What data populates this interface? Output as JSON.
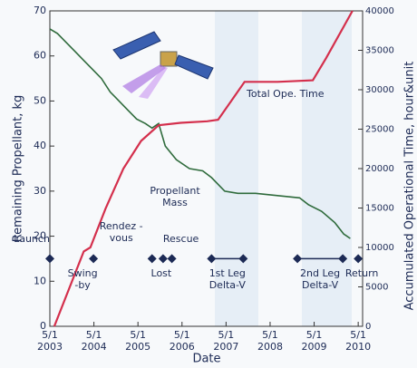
{
  "chart_data": {
    "type": "line",
    "x_label": "Date",
    "y_label": "Remaining Propellant, kg",
    "y2_label": "Accumulated Operational Time, hour&unit",
    "xlim": [
      2003.33,
      2010.43
    ],
    "xticks": [
      {
        "value": 2003.33,
        "label": "5/1 2003"
      },
      {
        "value": 2004.33,
        "label": "5/1 2004"
      },
      {
        "value": 2005.33,
        "label": "5/1 2005"
      },
      {
        "value": 2006.33,
        "label": "5/1 2006"
      },
      {
        "value": 2007.33,
        "label": "5/1 2007"
      },
      {
        "value": 2008.33,
        "label": "5/1 2008"
      },
      {
        "value": 2009.33,
        "label": "5/1 2009"
      },
      {
        "value": 2010.33,
        "label": "5/1 2010"
      }
    ],
    "ylim": [
      0,
      70
    ],
    "yticks": [
      0,
      10,
      20,
      30,
      40,
      50,
      60,
      70
    ],
    "y2lim": [
      0,
      40000
    ],
    "y2ticks": [
      0,
      5000,
      10000,
      15000,
      20000,
      25000,
      30000,
      35000,
      40000
    ],
    "series": [
      {
        "name": "Propellant Mass",
        "color": "#2f6b3c",
        "axis": "y",
        "x": [
          2003.33,
          2003.5,
          2003.7,
          2003.9,
          2004.1,
          2004.3,
          2004.5,
          2004.7,
          2004.9,
          2005.1,
          2005.3,
          2005.5,
          2005.65,
          2005.8,
          2005.95,
          2006.2,
          2006.5,
          2006.8,
          2007.0,
          2007.3,
          2007.6,
          2008.0,
          2008.5,
          2009.0,
          2009.2,
          2009.5,
          2009.8,
          2010.0,
          2010.15
        ],
        "values": [
          66,
          65,
          63,
          61,
          59,
          57,
          55,
          52,
          50,
          48,
          46,
          45,
          44,
          45,
          40,
          37,
          35,
          34.5,
          33,
          30,
          29.5,
          29.5,
          29,
          28.5,
          27,
          25.5,
          23,
          20.5,
          19.5
        ]
      },
      {
        "name": "Total Ope. Time",
        "color": "#d42f4c",
        "axis": "y2",
        "x": [
          2003.43,
          2004.1,
          2004.25,
          2004.6,
          2005.0,
          2005.4,
          2005.8,
          2006.3,
          2006.9,
          2007.15,
          2007.75,
          2008.5,
          2009.3,
          2009.6,
          2010.2
        ],
        "values": [
          0,
          9500,
          10000,
          15000,
          20000,
          23500,
          25500,
          25800,
          26000,
          26200,
          31000,
          31000,
          31200,
          34000,
          40000
        ]
      }
    ],
    "events_y": 15,
    "events": [
      {
        "label": "Launch",
        "x": [
          2003.33
        ]
      },
      {
        "label": "Swing -by",
        "x": [
          2004.32
        ]
      },
      {
        "label": "Rendez -vous",
        "x": [
          2005.65
        ]
      },
      {
        "label": "Lost",
        "x": [
          2005.9
        ]
      },
      {
        "label": "Rescue",
        "x": [
          2006.1
        ]
      },
      {
        "label": "1st Leg Delta-V",
        "x": [
          2007.0,
          2007.72
        ]
      },
      {
        "label": "2nd Leg Delta-V",
        "x": [
          2008.95,
          2009.98
        ]
      },
      {
        "label": "Return",
        "x": [
          2010.33
        ]
      }
    ]
  }
}
